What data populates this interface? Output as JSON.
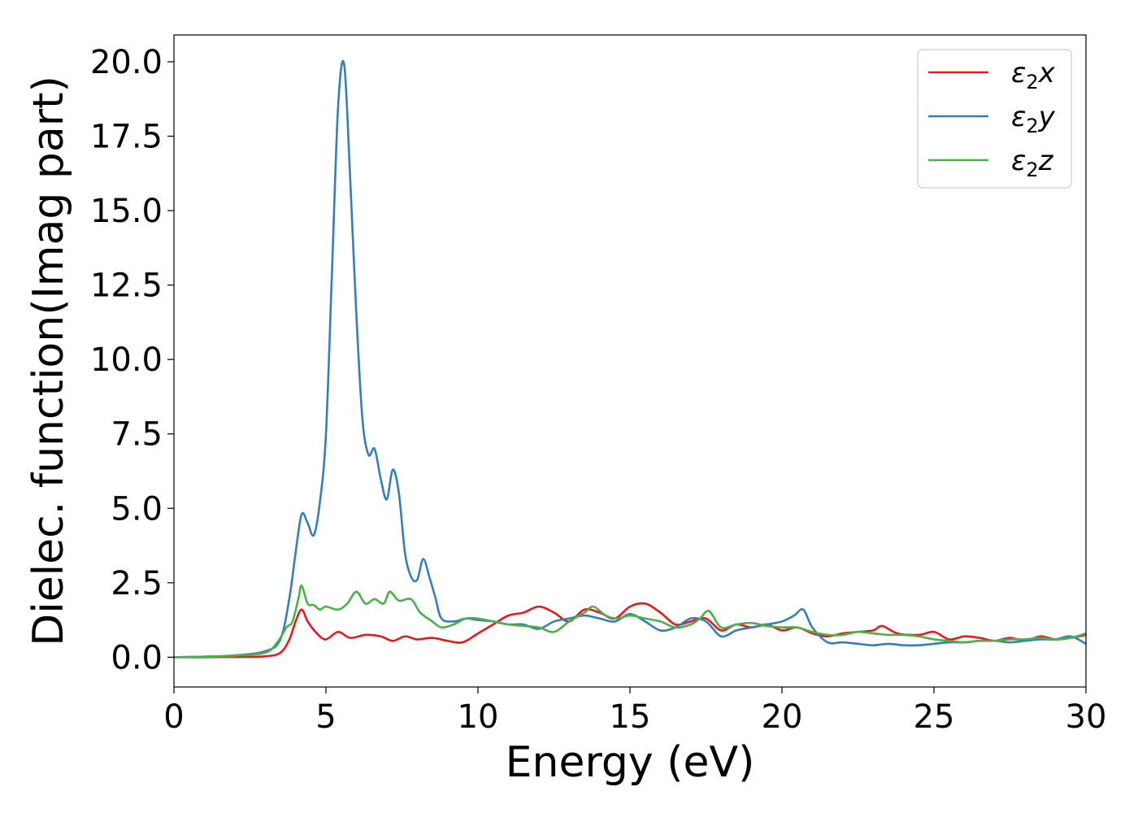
{
  "chart_data": {
    "type": "line",
    "xlabel": "Energy (eV)",
    "ylabel": "Dielec. function(Imag part)",
    "xlim": [
      0,
      30
    ],
    "ylim": [
      -1.0,
      20.9
    ],
    "xticks": [
      0,
      5,
      10,
      15,
      20,
      25,
      30
    ],
    "xtick_labels": [
      "0",
      "5",
      "10",
      "15",
      "20",
      "25",
      "30"
    ],
    "yticks": [
      0,
      2.5,
      5,
      7.5,
      10,
      12.5,
      15,
      17.5,
      20
    ],
    "ytick_labels": [
      "0.0",
      "2.5",
      "5.0",
      "7.5",
      "10.0",
      "12.5",
      "15.0",
      "17.5",
      "20.0"
    ],
    "grid": false,
    "legend": "top-right",
    "series": [
      {
        "name": "ε₂x",
        "legend_base": "ε",
        "legend_sub": "2",
        "legend_var": "x",
        "color": "#e41a1c",
        "points": [
          [
            0,
            0
          ],
          [
            1,
            0
          ],
          [
            2,
            0.01
          ],
          [
            3,
            0.03
          ],
          [
            3.5,
            0.15
          ],
          [
            3.8,
            0.6
          ],
          [
            4.0,
            1.2
          ],
          [
            4.2,
            1.6
          ],
          [
            4.4,
            1.2
          ],
          [
            4.7,
            0.8
          ],
          [
            5.0,
            0.6
          ],
          [
            5.4,
            0.85
          ],
          [
            5.8,
            0.65
          ],
          [
            6.3,
            0.75
          ],
          [
            6.8,
            0.7
          ],
          [
            7.2,
            0.55
          ],
          [
            7.6,
            0.7
          ],
          [
            8.0,
            0.6
          ],
          [
            8.5,
            0.65
          ],
          [
            9.0,
            0.55
          ],
          [
            9.5,
            0.5
          ],
          [
            10.0,
            0.8
          ],
          [
            10.5,
            1.1
          ],
          [
            11.0,
            1.4
          ],
          [
            11.5,
            1.5
          ],
          [
            12.0,
            1.7
          ],
          [
            12.5,
            1.5
          ],
          [
            13.0,
            1.2
          ],
          [
            13.5,
            1.6
          ],
          [
            14.0,
            1.5
          ],
          [
            14.5,
            1.3
          ],
          [
            15.0,
            1.7
          ],
          [
            15.5,
            1.8
          ],
          [
            16.0,
            1.5
          ],
          [
            16.5,
            1.1
          ],
          [
            17.0,
            1.2
          ],
          [
            17.5,
            1.3
          ],
          [
            18.0,
            0.9
          ],
          [
            18.5,
            1.1
          ],
          [
            19.0,
            1.0
          ],
          [
            19.5,
            1.1
          ],
          [
            20.0,
            0.9
          ],
          [
            20.5,
            1.0
          ],
          [
            21.0,
            0.8
          ],
          [
            21.5,
            0.7
          ],
          [
            22.0,
            0.8
          ],
          [
            22.5,
            0.85
          ],
          [
            23.0,
            0.9
          ],
          [
            23.3,
            1.05
          ],
          [
            23.8,
            0.8
          ],
          [
            24.5,
            0.75
          ],
          [
            25.0,
            0.85
          ],
          [
            25.5,
            0.6
          ],
          [
            26.0,
            0.7
          ],
          [
            26.5,
            0.65
          ],
          [
            27.0,
            0.55
          ],
          [
            27.5,
            0.65
          ],
          [
            28.0,
            0.55
          ],
          [
            28.5,
            0.7
          ],
          [
            29.0,
            0.6
          ],
          [
            29.5,
            0.65
          ],
          [
            30.0,
            0.75
          ]
        ]
      },
      {
        "name": "ε₂y",
        "legend_base": "ε",
        "legend_sub": "2",
        "legend_var": "y",
        "color": "#377eb8",
        "points": [
          [
            0,
            0
          ],
          [
            1,
            0.02
          ],
          [
            2,
            0.06
          ],
          [
            3,
            0.2
          ],
          [
            3.5,
            0.6
          ],
          [
            3.8,
            2.0
          ],
          [
            4.0,
            3.5
          ],
          [
            4.2,
            4.8
          ],
          [
            4.4,
            4.5
          ],
          [
            4.6,
            4.1
          ],
          [
            4.8,
            5.2
          ],
          [
            5.0,
            7.5
          ],
          [
            5.2,
            13.0
          ],
          [
            5.4,
            18.5
          ],
          [
            5.6,
            19.9
          ],
          [
            5.8,
            16.0
          ],
          [
            6.0,
            11.5
          ],
          [
            6.2,
            8.0
          ],
          [
            6.4,
            6.8
          ],
          [
            6.6,
            7.0
          ],
          [
            6.8,
            6.0
          ],
          [
            7.0,
            5.3
          ],
          [
            7.2,
            6.3
          ],
          [
            7.4,
            5.5
          ],
          [
            7.6,
            3.5
          ],
          [
            7.8,
            2.7
          ],
          [
            8.0,
            2.6
          ],
          [
            8.2,
            3.3
          ],
          [
            8.4,
            2.7
          ],
          [
            8.6,
            2.0
          ],
          [
            8.8,
            1.3
          ],
          [
            9.2,
            1.2
          ],
          [
            9.6,
            1.3
          ],
          [
            10.0,
            1.25
          ],
          [
            10.5,
            1.2
          ],
          [
            11.0,
            1.1
          ],
          [
            11.5,
            1.1
          ],
          [
            12.0,
            0.95
          ],
          [
            12.5,
            1.2
          ],
          [
            13.0,
            1.3
          ],
          [
            13.5,
            1.4
          ],
          [
            14.0,
            1.3
          ],
          [
            14.5,
            1.2
          ],
          [
            15.0,
            1.45
          ],
          [
            15.5,
            1.2
          ],
          [
            16.0,
            0.9
          ],
          [
            16.5,
            1.0
          ],
          [
            17.0,
            1.3
          ],
          [
            17.5,
            1.2
          ],
          [
            18.0,
            0.7
          ],
          [
            18.5,
            0.9
          ],
          [
            19.0,
            1.0
          ],
          [
            19.5,
            1.1
          ],
          [
            20.0,
            1.2
          ],
          [
            20.4,
            1.4
          ],
          [
            20.7,
            1.6
          ],
          [
            21.0,
            1.0
          ],
          [
            21.5,
            0.5
          ],
          [
            22.0,
            0.5
          ],
          [
            22.5,
            0.45
          ],
          [
            23.0,
            0.4
          ],
          [
            23.5,
            0.45
          ],
          [
            24.0,
            0.4
          ],
          [
            24.5,
            0.4
          ],
          [
            25.0,
            0.45
          ],
          [
            25.5,
            0.5
          ],
          [
            26.0,
            0.5
          ],
          [
            26.5,
            0.55
          ],
          [
            27.0,
            0.55
          ],
          [
            27.5,
            0.5
          ],
          [
            28.0,
            0.55
          ],
          [
            28.5,
            0.6
          ],
          [
            29.0,
            0.6
          ],
          [
            29.5,
            0.7
          ],
          [
            30.0,
            0.45
          ]
        ]
      },
      {
        "name": "ε₂z",
        "legend_base": "ε",
        "legend_sub": "2",
        "legend_var": "z",
        "color": "#4daf4a",
        "points": [
          [
            0,
            0
          ],
          [
            1,
            0.02
          ],
          [
            2,
            0.05
          ],
          [
            3,
            0.15
          ],
          [
            3.4,
            0.5
          ],
          [
            3.7,
            1.0
          ],
          [
            3.9,
            1.2
          ],
          [
            4.1,
            2.0
          ],
          [
            4.2,
            2.4
          ],
          [
            4.4,
            1.8
          ],
          [
            4.6,
            1.75
          ],
          [
            4.8,
            1.6
          ],
          [
            5.0,
            1.7
          ],
          [
            5.4,
            1.6
          ],
          [
            5.7,
            1.8
          ],
          [
            6.0,
            2.2
          ],
          [
            6.3,
            1.8
          ],
          [
            6.6,
            1.95
          ],
          [
            6.9,
            1.8
          ],
          [
            7.1,
            2.2
          ],
          [
            7.4,
            1.9
          ],
          [
            7.8,
            1.95
          ],
          [
            8.1,
            1.5
          ],
          [
            8.5,
            1.2
          ],
          [
            8.8,
            1.0
          ],
          [
            9.2,
            1.1
          ],
          [
            9.6,
            1.3
          ],
          [
            10.0,
            1.3
          ],
          [
            10.5,
            1.2
          ],
          [
            11.0,
            1.1
          ],
          [
            11.5,
            1.05
          ],
          [
            12.0,
            1.0
          ],
          [
            12.5,
            0.85
          ],
          [
            13.0,
            1.2
          ],
          [
            13.5,
            1.5
          ],
          [
            13.8,
            1.7
          ],
          [
            14.2,
            1.4
          ],
          [
            14.6,
            1.3
          ],
          [
            15.0,
            1.4
          ],
          [
            15.5,
            1.3
          ],
          [
            16.0,
            1.2
          ],
          [
            16.5,
            1.0
          ],
          [
            17.0,
            1.1
          ],
          [
            17.3,
            1.3
          ],
          [
            17.6,
            1.55
          ],
          [
            18.0,
            1.0
          ],
          [
            18.5,
            1.1
          ],
          [
            19.0,
            1.15
          ],
          [
            19.5,
            1.05
          ],
          [
            20.0,
            1.0
          ],
          [
            20.5,
            1.0
          ],
          [
            21.0,
            0.85
          ],
          [
            21.5,
            0.75
          ],
          [
            22.0,
            0.75
          ],
          [
            22.5,
            0.85
          ],
          [
            23.0,
            0.8
          ],
          [
            23.5,
            0.75
          ],
          [
            24.0,
            0.75
          ],
          [
            24.5,
            0.7
          ],
          [
            25.0,
            0.6
          ],
          [
            25.5,
            0.55
          ],
          [
            26.0,
            0.5
          ],
          [
            26.5,
            0.55
          ],
          [
            27.0,
            0.55
          ],
          [
            27.5,
            0.6
          ],
          [
            28.0,
            0.6
          ],
          [
            28.5,
            0.65
          ],
          [
            29.0,
            0.6
          ],
          [
            29.5,
            0.65
          ],
          [
            30.0,
            0.8
          ]
        ]
      }
    ]
  }
}
